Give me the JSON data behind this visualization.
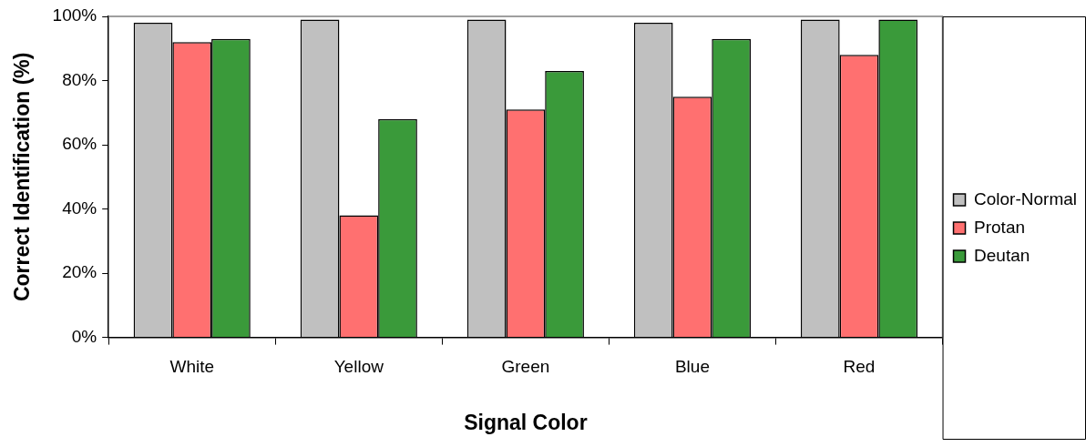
{
  "chart_data": {
    "type": "bar",
    "xlabel": "Signal Color",
    "ylabel": "Correct Identification (%)",
    "categories": [
      "White",
      "Yellow",
      "Green",
      "Blue",
      "Red"
    ],
    "series": [
      {
        "name": "Color-Normal",
        "color": "#c0c0c0",
        "values": [
          98,
          99,
          99,
          98,
          99
        ]
      },
      {
        "name": "Protan",
        "color": "#ff7070",
        "values": [
          92,
          38,
          71,
          75,
          88
        ]
      },
      {
        "name": "Deutan",
        "color": "#3a9a3a",
        "values": [
          93,
          68,
          83,
          93,
          99
        ]
      }
    ],
    "ylim": [
      0,
      100
    ],
    "yticks": [
      {
        "value": 0,
        "label": "0%"
      },
      {
        "value": 20,
        "label": "20%"
      },
      {
        "value": 40,
        "label": "40%"
      },
      {
        "value": 60,
        "label": "60%"
      },
      {
        "value": 80,
        "label": "80%"
      },
      {
        "value": 100,
        "label": "100%"
      }
    ],
    "grid": false,
    "legend": "right"
  }
}
